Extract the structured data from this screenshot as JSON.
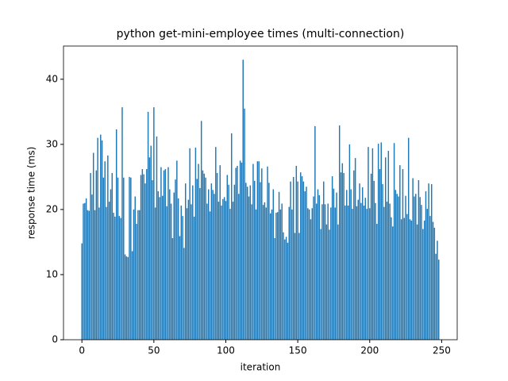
{
  "chart_data": {
    "type": "bar",
    "title": "python get-mini-employee times (multi-connection)",
    "xlabel": "iteration",
    "ylabel": "response time (ms)",
    "color": "#1f77b4",
    "x": [
      0,
      1,
      2,
      3,
      4,
      5,
      6,
      7,
      8,
      9,
      10,
      11,
      12,
      13,
      14,
      15,
      16,
      17,
      18,
      19,
      20,
      21,
      22,
      23,
      24,
      25,
      26,
      27,
      28,
      29,
      30,
      31,
      32,
      33,
      34,
      35,
      36,
      37,
      38,
      39,
      40,
      41,
      42,
      43,
      44,
      45,
      46,
      47,
      48,
      49,
      50,
      51,
      52,
      53,
      54,
      55,
      56,
      57,
      58,
      59,
      60,
      61,
      62,
      63,
      64,
      65,
      66,
      67,
      68,
      69,
      70,
      71,
      72,
      73,
      74,
      75,
      76,
      77,
      78,
      79,
      80,
      81,
      82,
      83,
      84,
      85,
      86,
      87,
      88,
      89,
      90,
      91,
      92,
      93,
      94,
      95,
      96,
      97,
      98,
      99,
      100,
      101,
      102,
      103,
      104,
      105,
      106,
      107,
      108,
      109,
      110,
      111,
      112,
      113,
      114,
      115,
      116,
      117,
      118,
      119,
      120,
      121,
      122,
      123,
      124,
      125,
      126,
      127,
      128,
      129,
      130,
      131,
      132,
      133,
      134,
      135,
      136,
      137,
      138,
      139,
      140,
      141,
      142,
      143,
      144,
      145,
      146,
      147,
      148,
      149,
      150,
      151,
      152,
      153,
      154,
      155,
      156,
      157,
      158,
      159,
      160,
      161,
      162,
      163,
      164,
      165,
      166,
      167,
      168,
      169,
      170,
      171,
      172,
      173,
      174,
      175,
      176,
      177,
      178,
      179,
      180,
      181,
      182,
      183,
      184,
      185,
      186,
      187,
      188,
      189,
      190,
      191,
      192,
      193,
      194,
      195,
      196,
      197,
      198,
      199,
      200,
      201,
      202,
      203,
      204,
      205,
      206,
      207,
      208,
      209,
      210,
      211,
      212,
      213,
      214,
      215,
      216,
      217,
      218,
      219,
      220,
      221,
      222,
      223,
      224,
      225,
      226,
      227,
      228,
      229,
      230,
      231,
      232,
      233,
      234,
      235,
      236,
      237,
      238,
      239,
      240,
      241,
      242,
      243,
      244,
      245,
      246,
      247,
      248
    ],
    "values": [
      14.8,
      20.9,
      21.0,
      21.7,
      19.9,
      19.8,
      25.6,
      22.3,
      28.7,
      19.9,
      26.0,
      31.0,
      20.3,
      31.5,
      30.6,
      24.9,
      27.4,
      20.4,
      28.3,
      21.2,
      23.1,
      25.6,
      19.5,
      18.9,
      32.3,
      24.9,
      19.0,
      18.7,
      35.7,
      24.9,
      13.1,
      12.8,
      12.7,
      25.0,
      24.9,
      13.6,
      20.0,
      22.0,
      17.8,
      19.9,
      19.9,
      25.3,
      26.2,
      25.4,
      24.0,
      26.2,
      35.0,
      28.0,
      29.8,
      24.5,
      35.7,
      20.3,
      31.2,
      22.8,
      21.9,
      26.5,
      22.1,
      26.0,
      26.2,
      20.5,
      26.5,
      23.1,
      20.9,
      15.6,
      22.6,
      24.6,
      27.5,
      21.7,
      15.9,
      20.6,
      19.0,
      14.1,
      24.0,
      20.2,
      21.5,
      29.4,
      20.8,
      23.7,
      18.9,
      29.5,
      24.7,
      27.0,
      23.3,
      33.6,
      26.0,
      25.5,
      24.9,
      20.9,
      23.1,
      19.7,
      24.0,
      23.0,
      22.4,
      29.6,
      25.6,
      21.2,
      26.8,
      20.6,
      21.6,
      21.9,
      21.3,
      25.3,
      23.8,
      20.1,
      31.7,
      21.2,
      23.8,
      26.4,
      26.7,
      22.4,
      27.5,
      27.2,
      43.0,
      35.5,
      24.1,
      23.5,
      22.0,
      23.7,
      20.8,
      27.0,
      24.4,
      20.0,
      27.4,
      27.4,
      24.2,
      26.3,
      20.7,
      21.1,
      20.3,
      26.6,
      24.1,
      19.4,
      20.0,
      23.1,
      15.6,
      19.5,
      19.6,
      22.7,
      20.0,
      20.9,
      16.5,
      15.4,
      15.8,
      14.9,
      20.4,
      24.3,
      20.0,
      25.0,
      16.4,
      26.7,
      24.3,
      16.4,
      25.7,
      25.1,
      24.3,
      22.8,
      23.5,
      20.2,
      20.0,
      18.5,
      20.2,
      22.0,
      32.8,
      20.9,
      23.1,
      22.2,
      17.0,
      20.8,
      24.3,
      20.8,
      17.7,
      20.9,
      16.9,
      20.3,
      25.1,
      23.2,
      20.3,
      22.6,
      17.7,
      32.9,
      25.7,
      27.1,
      25.6,
      20.6,
      23.0,
      20.6,
      30.0,
      23.1,
      20.1,
      26.0,
      27.9,
      20.5,
      21.5,
      24.0,
      21.0,
      23.4,
      20.6,
      21.8,
      20.1,
      29.6,
      20.2,
      25.5,
      29.4,
      24.4,
      21.0,
      17.8,
      30.1,
      26.2,
      30.3,
      23.9,
      20.4,
      28.0,
      21.2,
      29.0,
      20.9,
      18.8,
      17.4,
      30.2,
      23.0,
      22.4,
      22.0,
      26.8,
      18.5,
      26.2,
      18.7,
      22.1,
      19.3,
      31.0,
      18.5,
      18.3,
      24.8,
      22.0,
      22.4,
      17.7,
      24.5,
      21.9,
      20.7,
      17.0,
      18.3,
      22.8,
      20.1,
      24.0,
      19.0,
      23.9,
      18.1,
      17.2,
      13.2,
      15.2,
      12.3
    ],
    "xlim": [
      -12.8,
      260.8
    ],
    "xticks": [
      0,
      50,
      100,
      150,
      200,
      250
    ],
    "ylim": [
      0,
      45.1
    ],
    "yticks": [
      0,
      10,
      20,
      30,
      40
    ]
  }
}
